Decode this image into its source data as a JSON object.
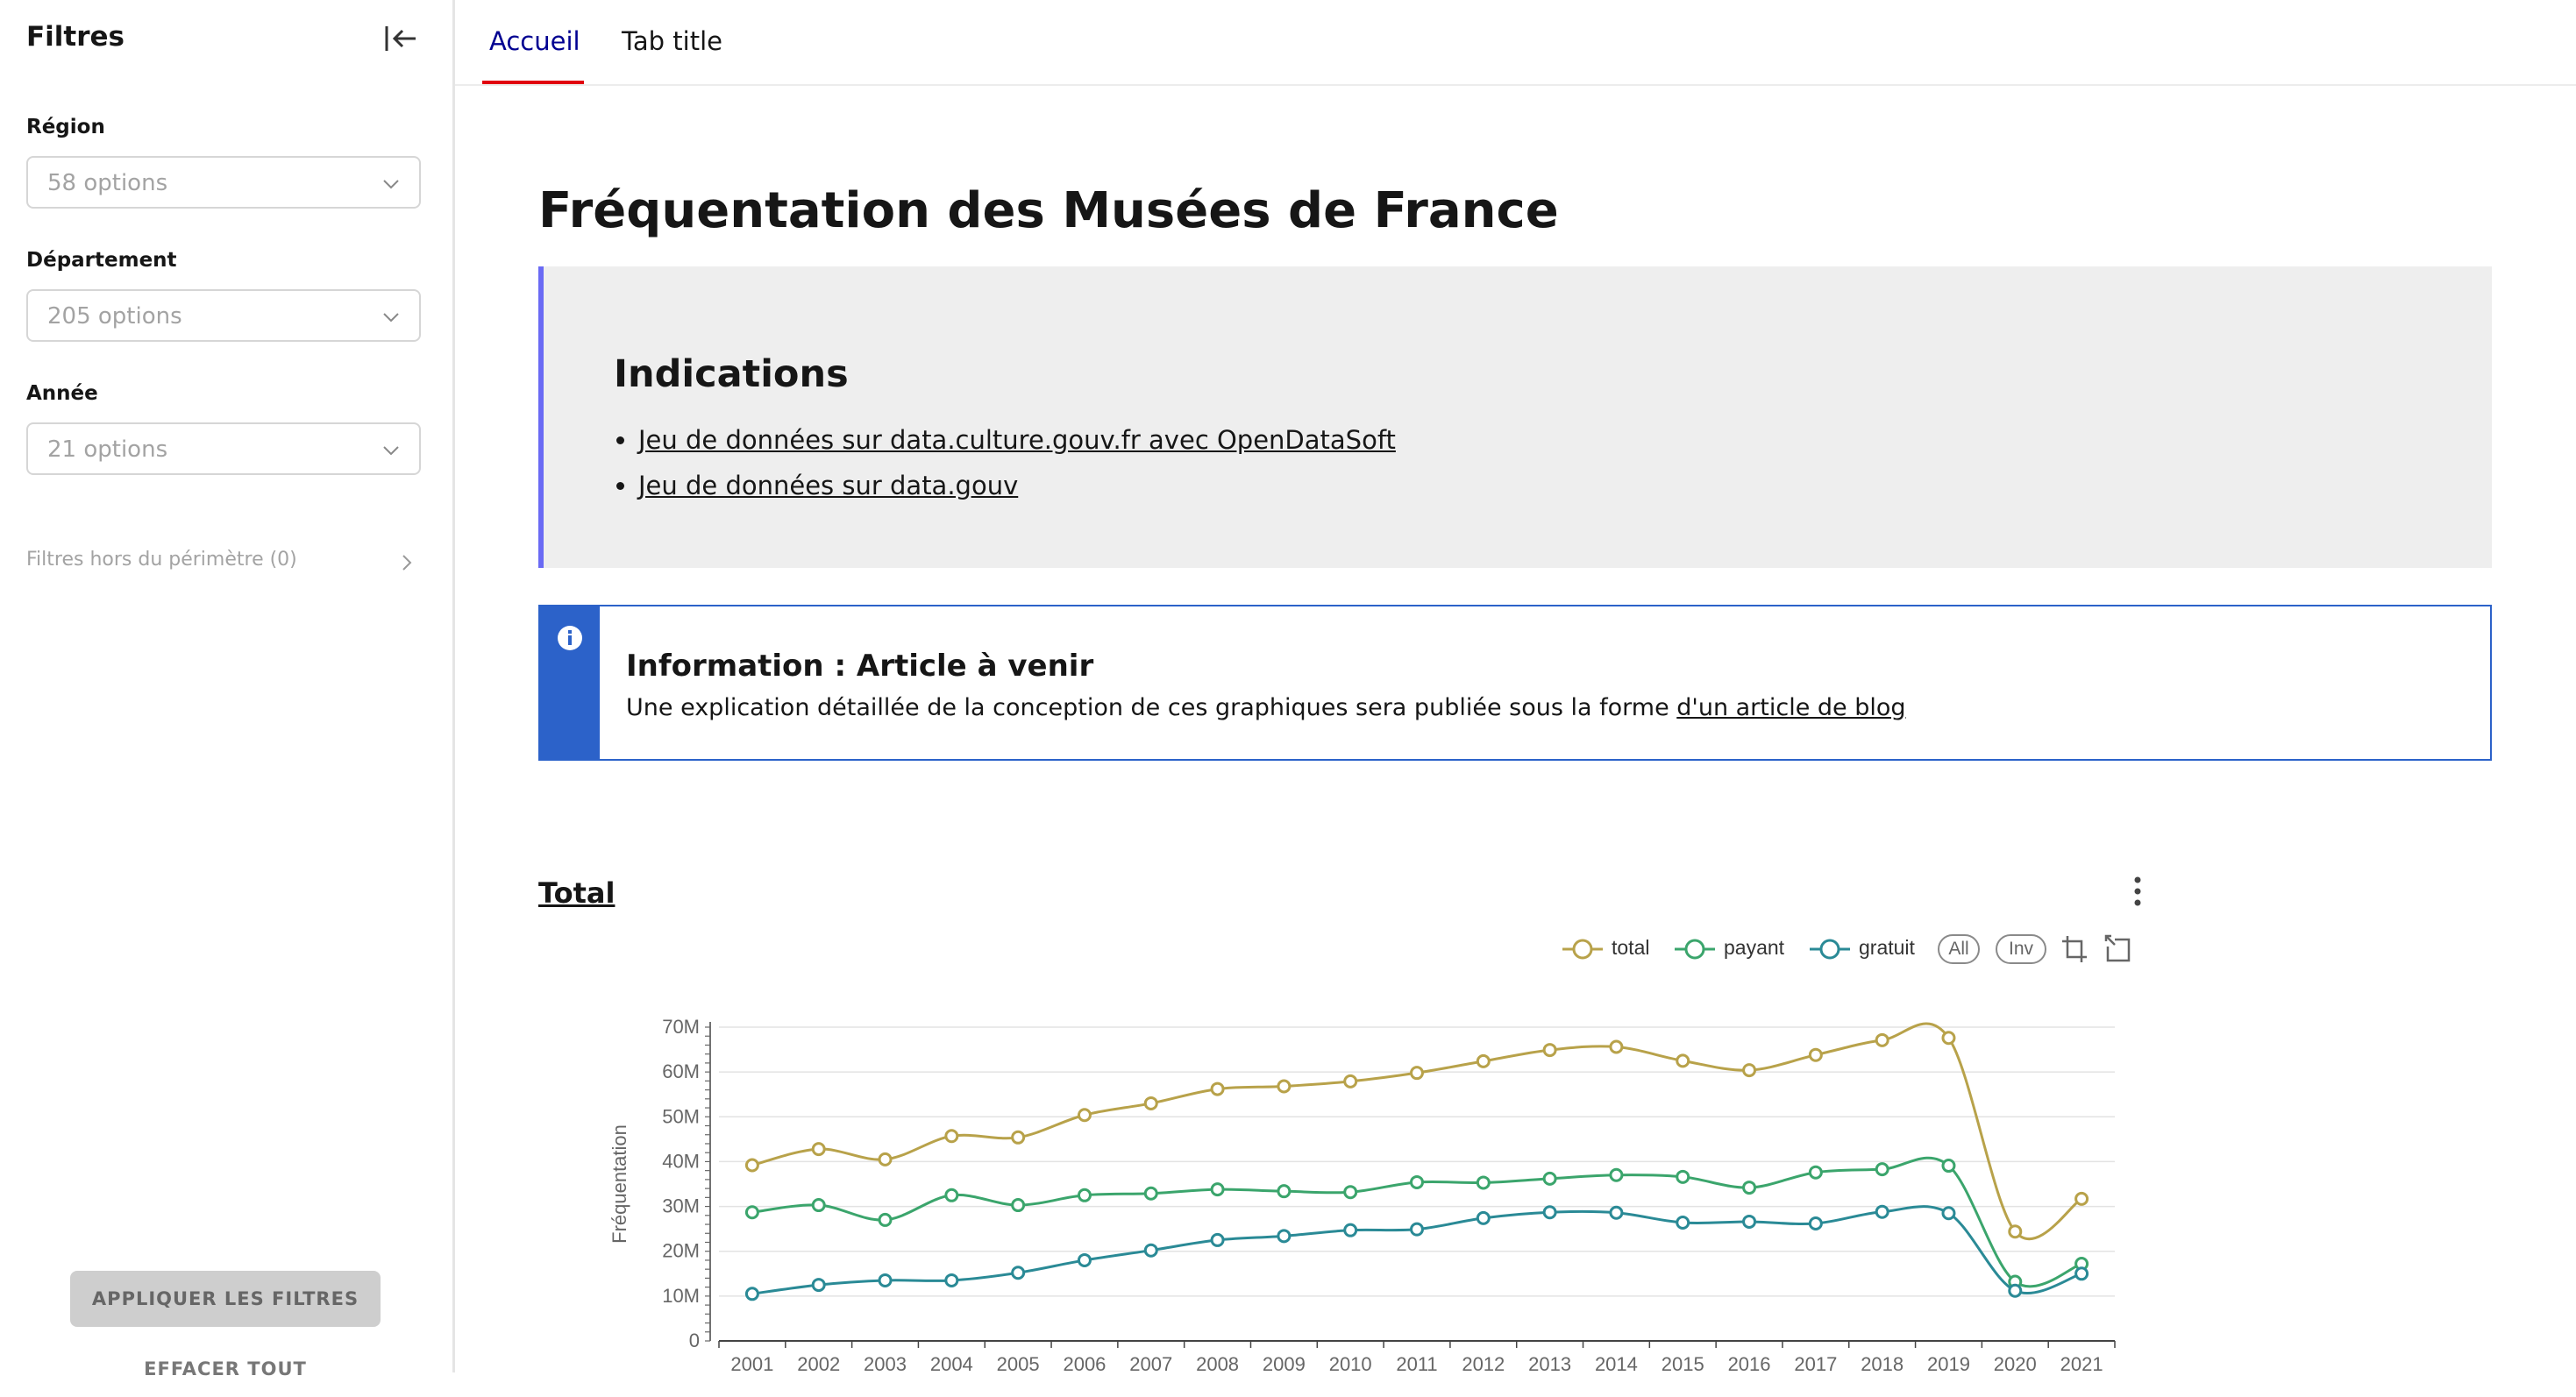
{
  "sidebar": {
    "title": "Filtres",
    "filters": [
      {
        "label": "Région",
        "placeholder": "58 options"
      },
      {
        "label": "Département",
        "placeholder": "205 options"
      },
      {
        "label": "Année",
        "placeholder": "21 options"
      }
    ],
    "out_of_scope": "Filtres hors du périmètre (0)",
    "apply_label": "APPLIQUER LES FILTRES",
    "clear_label": "EFFACER TOUT"
  },
  "tabs": [
    {
      "label": "Accueil",
      "active": true
    },
    {
      "label": "Tab title",
      "active": false
    }
  ],
  "main": {
    "title": "Fréquentation des Musées de France",
    "indications": {
      "heading": "Indications",
      "links": [
        "Jeu de données sur data.culture.gouv.fr avec OpenDataSoft",
        "Jeu de données sur data.gouv"
      ]
    },
    "info": {
      "heading": "Information : Article à venir",
      "text": "Une explication détaillée de la conception de ces graphiques sera publiée sous la forme ",
      "link": "d'un article de blog"
    },
    "chart_title": "Total",
    "chart_tools": {
      "all": "All",
      "inv": "Inv"
    }
  },
  "colors": {
    "accent": "#000091",
    "tab_indicator": "#e1000f",
    "callout_border": "#6a6af4",
    "info_blue": "#2c62c9",
    "total": "#b8a24a",
    "payant": "#3ba56c",
    "gratuit": "#2a8a96"
  },
  "icons": {
    "collapse": "collapse-left-icon",
    "chevron": "chevron-down-icon",
    "info": "info-icon",
    "menu": "more-vertical-icon"
  },
  "chart_data": {
    "type": "line",
    "title": "Total",
    "xlabel": "",
    "ylabel": "Fréquentation",
    "ylim": [
      0,
      70000000
    ],
    "yticks": [
      "0",
      "10M",
      "20M",
      "30M",
      "40M",
      "50M",
      "60M",
      "70M"
    ],
    "grid": true,
    "legend": "top-right",
    "categories": [
      "2001",
      "2002",
      "2003",
      "2004",
      "2005",
      "2006",
      "2007",
      "2008",
      "2009",
      "2010",
      "2011",
      "2012",
      "2013",
      "2014",
      "2015",
      "2016",
      "2017",
      "2018",
      "2019",
      "2020",
      "2021"
    ],
    "series": [
      {
        "name": "total",
        "color": "#b8a24a",
        "values": [
          39200000,
          42800000,
          40500000,
          45700000,
          45400000,
          50400000,
          53000000,
          56200000,
          56800000,
          57900000,
          59800000,
          62400000,
          64900000,
          65600000,
          62500000,
          60400000,
          63800000,
          67100000,
          67600000,
          24400000,
          31700000
        ]
      },
      {
        "name": "payant",
        "color": "#3ba56c",
        "values": [
          28700000,
          30300000,
          27000000,
          32500000,
          30300000,
          32500000,
          32900000,
          33800000,
          33400000,
          33200000,
          35400000,
          35300000,
          36200000,
          37000000,
          36600000,
          34200000,
          37600000,
          38300000,
          39100000,
          13200000,
          17200000
        ]
      },
      {
        "name": "gratuit",
        "color": "#2a8a96",
        "values": [
          10500000,
          12500000,
          13500000,
          13500000,
          15200000,
          18000000,
          20200000,
          22500000,
          23400000,
          24700000,
          24900000,
          27400000,
          28700000,
          28600000,
          26400000,
          26600000,
          26200000,
          28800000,
          28500000,
          11200000,
          15000000
        ]
      }
    ]
  }
}
